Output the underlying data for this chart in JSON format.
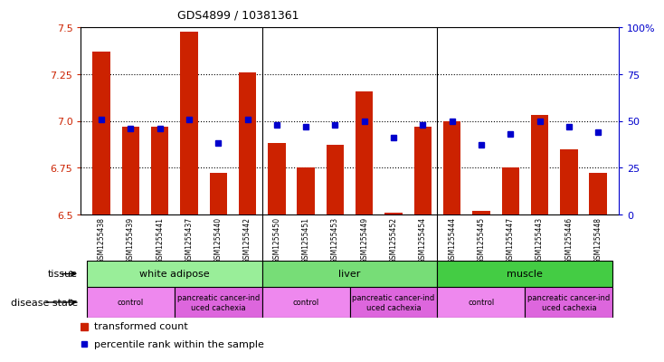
{
  "title": "GDS4899 / 10381361",
  "samples": [
    "GSM1255438",
    "GSM1255439",
    "GSM1255441",
    "GSM1255437",
    "GSM1255440",
    "GSM1255442",
    "GSM1255450",
    "GSM1255451",
    "GSM1255453",
    "GSM1255449",
    "GSM1255452",
    "GSM1255454",
    "GSM1255444",
    "GSM1255445",
    "GSM1255447",
    "GSM1255443",
    "GSM1255446",
    "GSM1255448"
  ],
  "transformed_count": [
    7.37,
    6.97,
    6.97,
    7.48,
    6.72,
    7.26,
    6.88,
    6.75,
    6.87,
    7.16,
    6.51,
    6.97,
    7.0,
    6.52,
    6.75,
    7.03,
    6.85,
    6.72
  ],
  "percentile_rank": [
    51,
    46,
    46,
    51,
    38,
    51,
    48,
    47,
    48,
    50,
    41,
    48,
    50,
    37,
    43,
    50,
    47,
    44
  ],
  "ylim_left": [
    6.5,
    7.5
  ],
  "ylim_right": [
    0,
    100
  ],
  "yticks_left": [
    6.5,
    6.75,
    7.0,
    7.25,
    7.5
  ],
  "yticks_right": [
    0,
    25,
    50,
    75,
    100
  ],
  "bar_color": "#cc2200",
  "dot_color": "#0000cc",
  "tissue_groups": [
    {
      "label": "white adipose",
      "start": 0,
      "end": 5,
      "color": "#99ee99"
    },
    {
      "label": "liver",
      "start": 6,
      "end": 11,
      "color": "#77dd77"
    },
    {
      "label": "muscle",
      "start": 12,
      "end": 17,
      "color": "#44cc44"
    }
  ],
  "disease_groups": [
    {
      "label": "control",
      "start": 0,
      "end": 2,
      "color": "#ee88ee"
    },
    {
      "label": "pancreatic cancer-ind\nuced cachexia",
      "start": 3,
      "end": 5,
      "color": "#dd66dd"
    },
    {
      "label": "control",
      "start": 6,
      "end": 8,
      "color": "#ee88ee"
    },
    {
      "label": "pancreatic cancer-ind\nuced cachexia",
      "start": 9,
      "end": 11,
      "color": "#dd66dd"
    },
    {
      "label": "control",
      "start": 12,
      "end": 14,
      "color": "#ee88ee"
    },
    {
      "label": "pancreatic cancer-ind\nuced cachexia",
      "start": 15,
      "end": 17,
      "color": "#dd66dd"
    }
  ],
  "label_color_left": "#cc2200",
  "label_color_right": "#0000cc",
  "xticklabel_color": "#333333",
  "separator_color": "#000000",
  "grid_linestyle": ":",
  "grid_linewidth": 0.8,
  "bar_width": 0.6,
  "dot_markersize": 4,
  "xtick_fontsize": 5.5,
  "ytick_fontsize": 8,
  "title_fontsize": 9
}
